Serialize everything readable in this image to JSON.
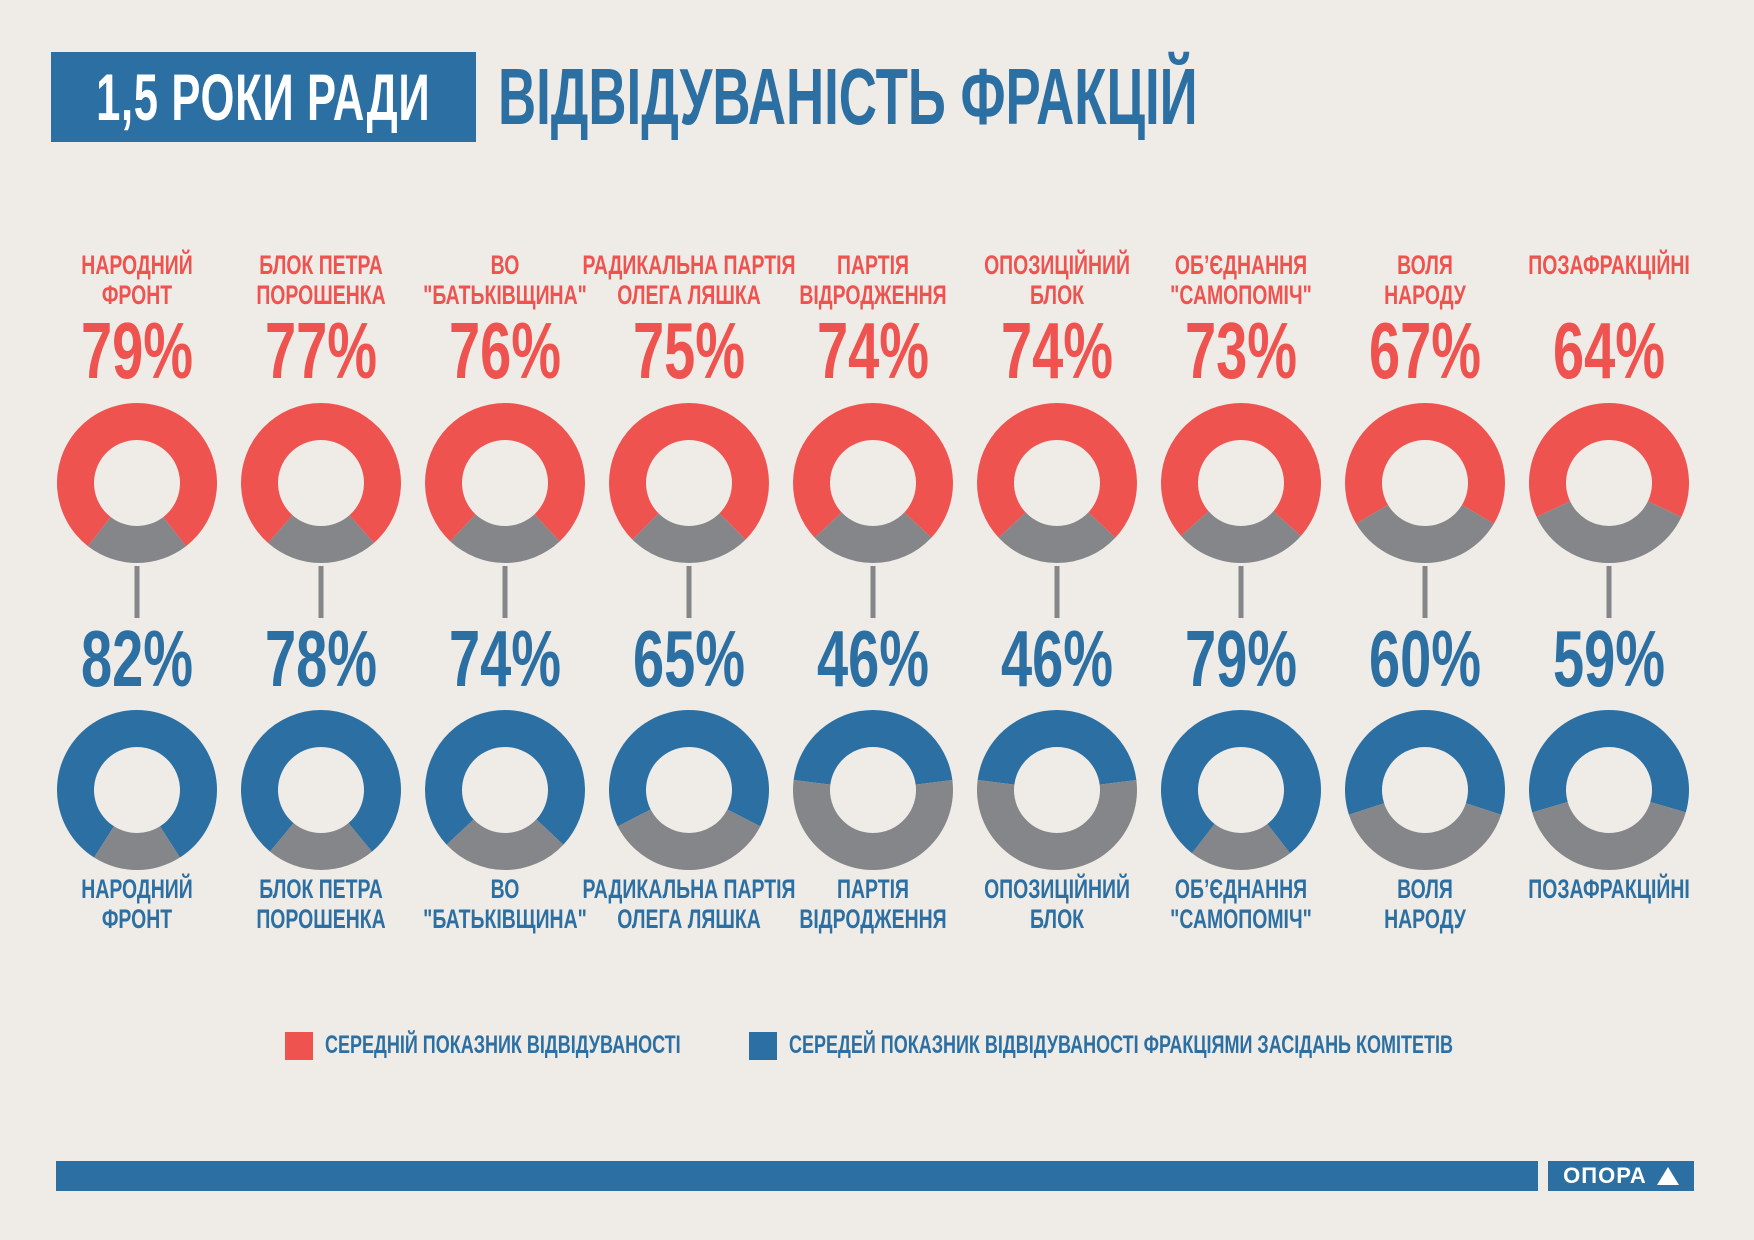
{
  "header": {
    "label": "1,5 РОКИ РАДИ",
    "title": "ВІДВІДУВАНІСТЬ ФРАКЦІЙ"
  },
  "colors": {
    "red": "#ef5350",
    "blue": "#2c6fa2",
    "gray": "#858689",
    "background": "#efebe6"
  },
  "chart_data": {
    "type": "donut",
    "title": "ВІДВІДУВАНІСТЬ ФРАКЦІЙ",
    "categories": [
      [
        "НАРОДНИЙ",
        "ФРОНТ"
      ],
      [
        "БЛОК ПЕТРА",
        "ПОРОШЕНКА"
      ],
      [
        "ВО",
        "\"БАТЬКІВЩИНА\""
      ],
      [
        "РАДИКАЛЬНА ПАРТІЯ",
        "ОЛЕГА ЛЯШКА"
      ],
      [
        "ПАРТІЯ",
        "ВІДРОДЖЕННЯ"
      ],
      [
        "ОПОЗИЦІЙНИЙ",
        "БЛОК"
      ],
      [
        "ОБ’ЄДНАННЯ",
        "\"САМОПОМІЧ\""
      ],
      [
        "ВОЛЯ",
        "НАРОДУ"
      ],
      [
        "ПОЗАФРАКЦІЙНІ"
      ]
    ],
    "series": [
      {
        "name": "СЕРЕДНІЙ ПОКАЗНИК ВІДВІДУВАНОСТІ",
        "color": "#ef5350",
        "values": [
          79,
          77,
          76,
          75,
          74,
          74,
          73,
          67,
          64
        ]
      },
      {
        "name": "СЕРЕДЕЙ ПОКАЗНИК ВІДВІДУВАНОСТІ ФРАКЦІЯМИ ЗАСІДАНЬ КОМІТЕТІВ",
        "color": "#2c6fa2",
        "values": [
          82,
          78,
          74,
          65,
          46,
          46,
          79,
          60,
          59
        ]
      }
    ],
    "unit": "%"
  },
  "footer": {
    "logo": "ОПОРА"
  }
}
